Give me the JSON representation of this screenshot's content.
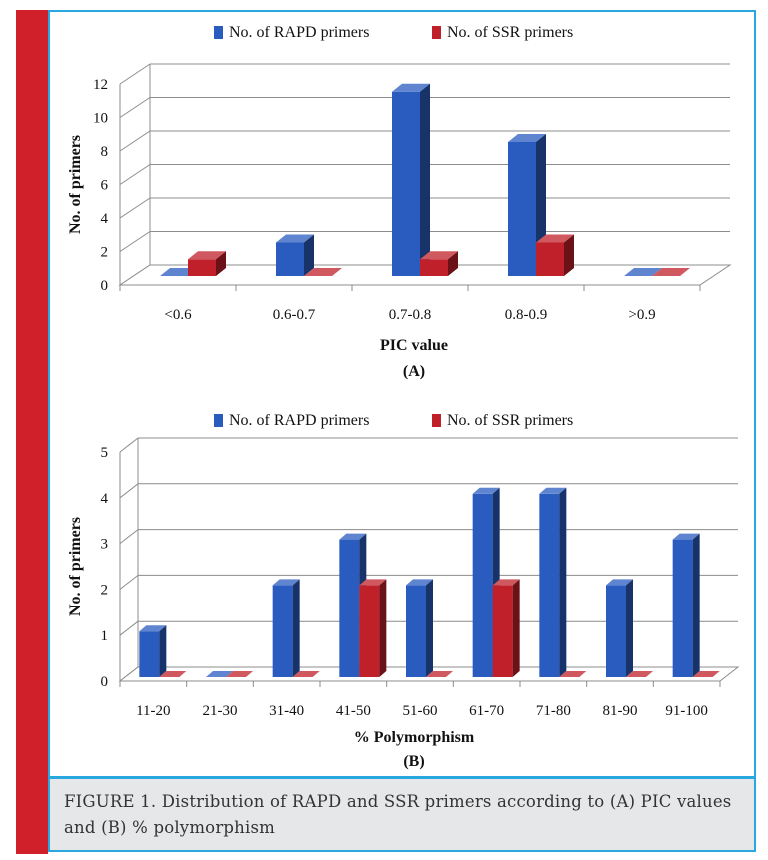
{
  "colors": {
    "rapd": "#2a5cc0",
    "ssr": "#c0202a",
    "frame_red": "#d0202a",
    "frame_blue": "#29a8e0"
  },
  "caption": "FIGURE 1. Distribution of RAPD and SSR primers according to (A) PIC values and (B) % polymorphism",
  "chart_data": [
    {
      "type": "bar",
      "panel_label": "(A)",
      "xlabel": "PIC value",
      "ylabel": "No. of primers",
      "ylim": [
        0,
        12
      ],
      "yticks": [
        "0",
        "2",
        "4",
        "6",
        "8",
        "10",
        "12"
      ],
      "categories": [
        "<0.6",
        "0.6-0.7",
        "0.7-0.8",
        "0.8-0.9",
        ">0.9"
      ],
      "legend_position": "top",
      "series": [
        {
          "name": "No. of RAPD primers",
          "values": [
            0,
            2,
            11,
            8,
            0
          ]
        },
        {
          "name": "No. of SSR primers",
          "values": [
            1,
            0,
            1,
            2,
            0
          ]
        }
      ]
    },
    {
      "type": "bar",
      "panel_label": "(B)",
      "xlabel": "% Polymorphism",
      "ylabel": "No. of primers",
      "ylim": [
        0,
        5
      ],
      "yticks": [
        "0",
        "1",
        "2",
        "3",
        "4",
        "5"
      ],
      "categories": [
        "11-20",
        "21-30",
        "31-40",
        "41-50",
        "51-60",
        "61-70",
        "71-80",
        "81-90",
        "91-100"
      ],
      "legend_position": "top",
      "series": [
        {
          "name": "No. of RAPD primers",
          "values": [
            1,
            0,
            2,
            3,
            2,
            4,
            4,
            2,
            3
          ]
        },
        {
          "name": "No. of SSR primers",
          "values": [
            0,
            0,
            0,
            2,
            0,
            2,
            0,
            0,
            0
          ]
        }
      ]
    }
  ]
}
